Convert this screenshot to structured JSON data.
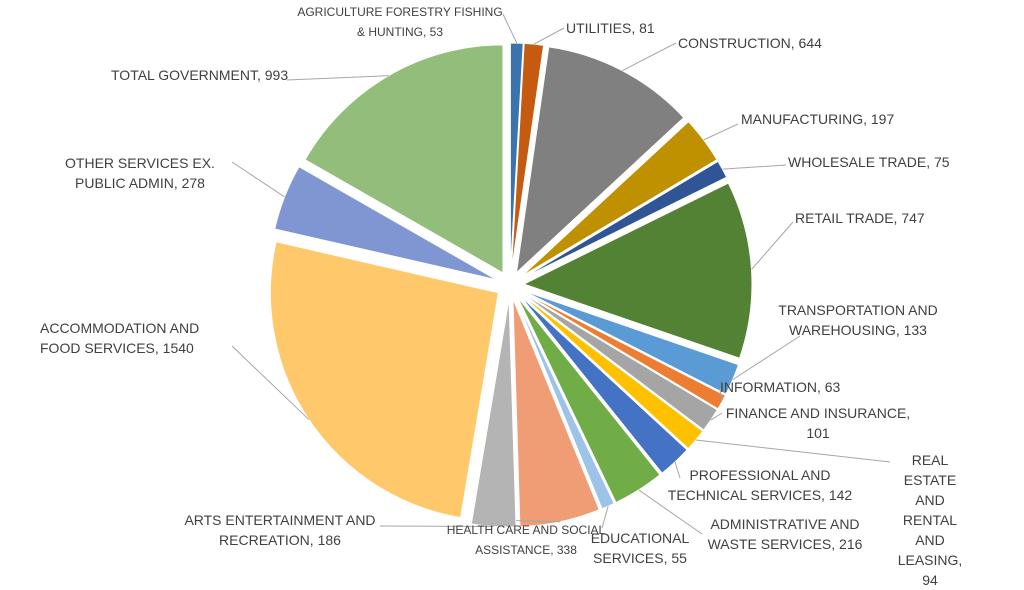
{
  "chart_data": {
    "type": "pie",
    "values": [
      53,
      81,
      644,
      197,
      75,
      747,
      133,
      63,
      101,
      94,
      142,
      216,
      55,
      338,
      186,
      1540,
      278,
      993
    ],
    "value_labels": [
      "AGRICULTURE FORESTRY FISHING & HUNTING, 53",
      "UTILITIES, 81",
      "CONSTRUCTION, 644",
      "MANUFACTURING, 197",
      "WHOLESALE TRADE, 75",
      "RETAIL TRADE, 747",
      "TRANSPORTATION AND WAREHOUSING, 133",
      "INFORMATION, 63",
      "FINANCE AND INSURANCE, 101",
      "REAL ESTATE AND RENTAL AND LEASING, 94",
      "PROFESSIONAL AND TECHNICAL SERVICES, 142",
      "ADMINISTRATIVE AND WASTE SERVICES, 216",
      "EDUCATIONAL SERVICES, 55",
      "HEALTH CARE AND SOCIAL ASSISTANCE, 338",
      "ARTS ENTERTAINMENT AND RECREATION, 186",
      "ACCOMMODATION AND FOOD SERVICES, 1540",
      "OTHER SERVICES EX. PUBLIC ADMIN, 278",
      "TOTAL GOVERNMENT, 993"
    ],
    "colors": [
      "#3b73ad",
      "#c55a11",
      "#808080",
      "#bf9000",
      "#2f5597",
      "#548235",
      "#5b9bd5",
      "#ed7d31",
      "#a5a5a5",
      "#ffc000",
      "#4472c4",
      "#70ad47",
      "#9dc3e6",
      "#f09c74",
      "#b4b4b4",
      "#ffc96b",
      "#7f96d2",
      "#93bd7b"
    ]
  }
}
